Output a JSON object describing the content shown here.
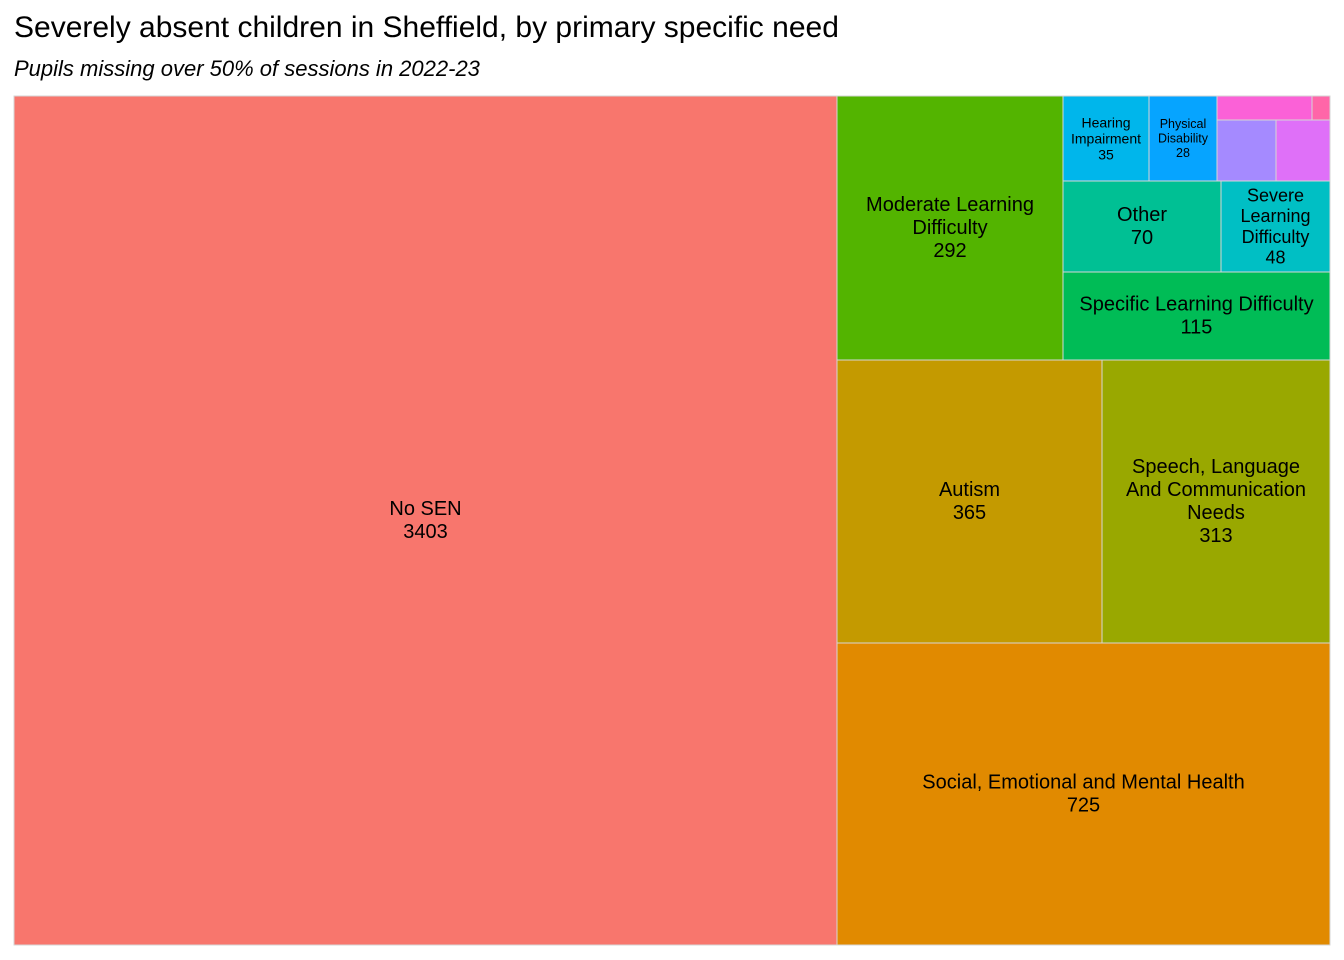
{
  "chart_data": {
    "type": "treemap",
    "title": "Severely absent children in Sheffield, by primary specific need",
    "subtitle": "Pupils missing over 50% of sessions in 2022-23",
    "tiles": [
      {
        "label": [
          "No SEN"
        ],
        "value": 3403,
        "color": "#F8766D"
      },
      {
        "label": [
          "Social, Emotional and Mental Health"
        ],
        "value": 725,
        "color": "#E18A00"
      },
      {
        "label": [
          "Autism"
        ],
        "value": 365,
        "color": "#C49A00"
      },
      {
        "label": [
          "Speech, Language",
          "And Communication",
          "Needs"
        ],
        "value": 313,
        "color": "#99A800"
      },
      {
        "label": [
          "Moderate Learning",
          "Difficulty"
        ],
        "value": 292,
        "color": "#53B400"
      },
      {
        "label": [
          "Specific Learning Difficulty"
        ],
        "value": 115,
        "color": "#00BC56"
      },
      {
        "label": [
          "Other"
        ],
        "value": 70,
        "color": "#00C094"
      },
      {
        "label": [
          "Severe",
          "Learning",
          "Difficulty"
        ],
        "value": 48,
        "color": "#00BFC4"
      },
      {
        "label": [
          "Hearing",
          "Impairment"
        ],
        "value": 35,
        "color": "#00B6EB"
      },
      {
        "label": [
          "Physical",
          "Disability"
        ],
        "value": 28,
        "color": "#06A4FF"
      },
      {
        "label": [],
        "value": 20,
        "color": "#A58AFF"
      },
      {
        "label": [],
        "value": 15,
        "color": "#DF70F8"
      },
      {
        "label": [],
        "value": 12,
        "color": "#FB61D7"
      },
      {
        "label": [],
        "value": 2,
        "color": "#FF66A8"
      }
    ]
  }
}
